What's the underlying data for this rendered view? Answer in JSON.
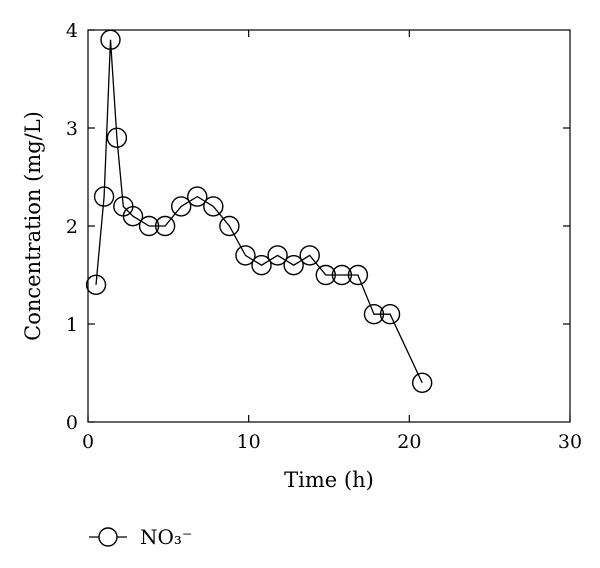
{
  "chart_data": {
    "type": "line",
    "xlabel": "Time (h)",
    "ylabel": "Concentration (mg/L)",
    "xlim": [
      0,
      30
    ],
    "ylim": [
      0,
      4
    ],
    "x_ticks": [
      "0",
      "10",
      "20",
      "30"
    ],
    "y_ticks": [
      "0",
      "1",
      "2",
      "3",
      "4"
    ],
    "grid": false,
    "legend_position": "bottom-left",
    "series": [
      {
        "name": "NO₃⁻",
        "marker": "open-circle",
        "color": "#000000",
        "x": [
          0.5,
          1.0,
          1.4,
          1.8,
          2.2,
          2.8,
          3.8,
          4.8,
          5.8,
          6.8,
          7.8,
          8.8,
          9.8,
          10.8,
          11.8,
          12.8,
          13.8,
          14.8,
          15.8,
          16.8,
          17.8,
          18.8,
          20.8
        ],
        "y": [
          1.4,
          2.3,
          3.9,
          2.9,
          2.2,
          2.1,
          2.0,
          2.0,
          2.2,
          2.3,
          2.2,
          2.0,
          1.7,
          1.6,
          1.7,
          1.6,
          1.7,
          1.5,
          1.5,
          1.5,
          1.1,
          1.1,
          0.4
        ]
      }
    ]
  }
}
